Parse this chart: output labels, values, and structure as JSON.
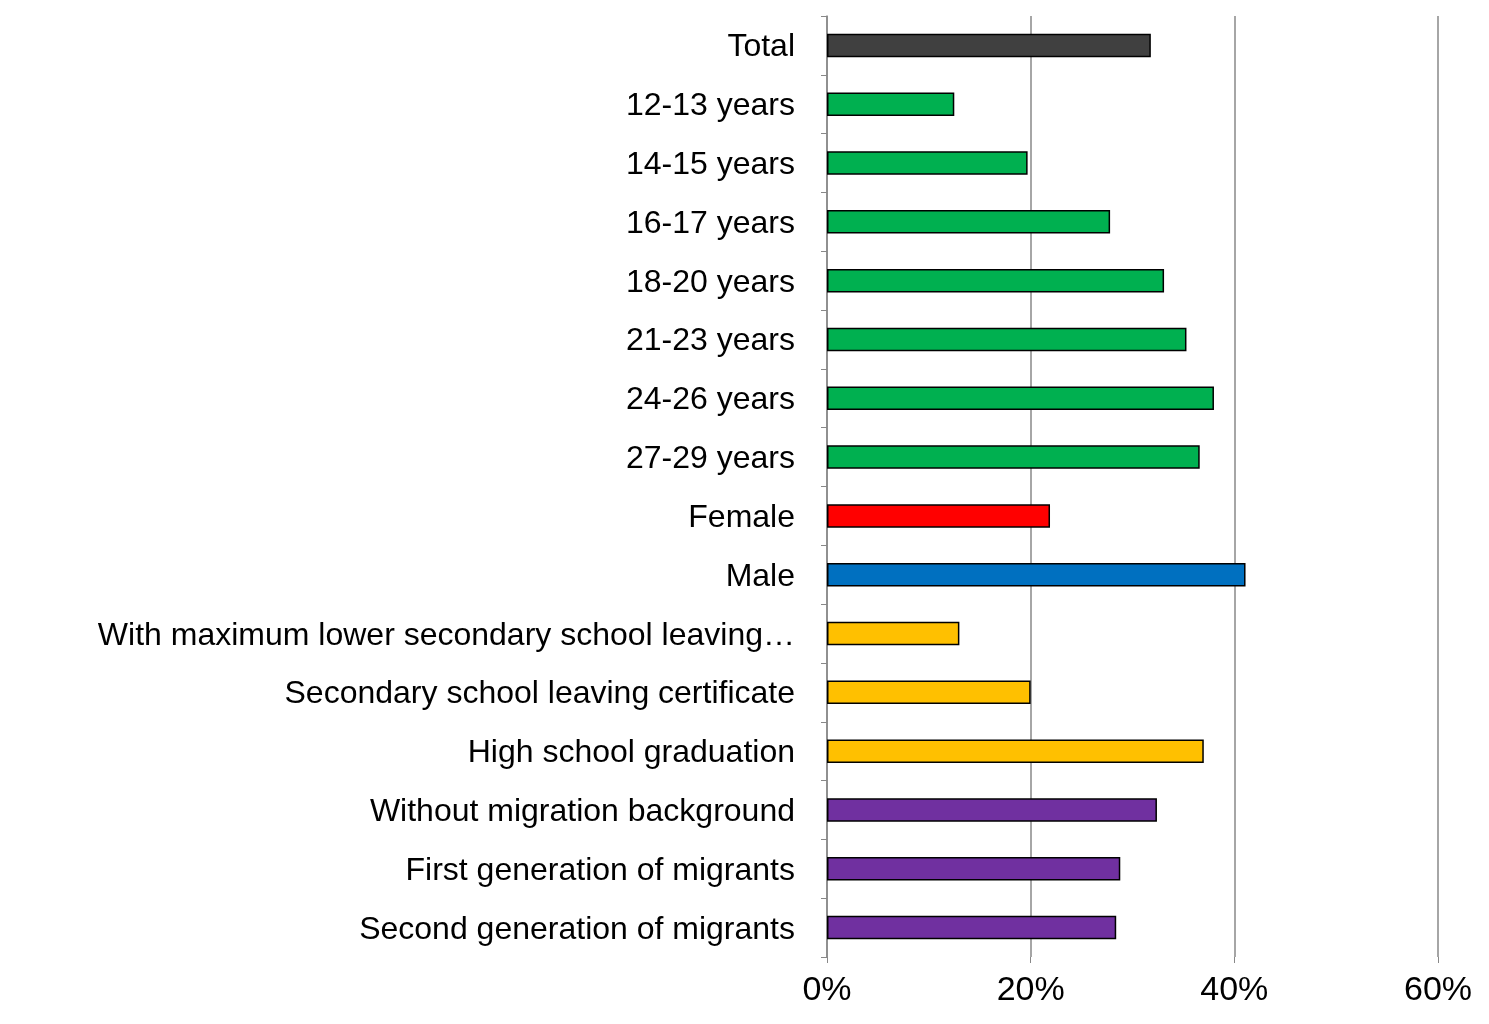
{
  "chart_data": {
    "type": "bar",
    "orientation": "horizontal",
    "categories": [
      "Total",
      "12-13 years",
      "14-15 years",
      "16-17 years",
      "18-20 years",
      "21-23 years",
      "24-26 years",
      "27-29 years",
      "Female",
      "Male",
      "With maximum lower secondary school leaving…",
      "Secondary school leaving certificate",
      "High school graduation",
      "Without migration background",
      "First generation of migrants",
      "Second generation of migrants"
    ],
    "values": [
      31.8,
      12.5,
      19.7,
      27.8,
      33.1,
      35.3,
      38.0,
      36.6,
      21.9,
      41.1,
      13.0,
      20.0,
      37.0,
      32.4,
      28.8,
      28.4
    ],
    "colors": [
      "#404040",
      "#00b050",
      "#00b050",
      "#00b050",
      "#00b050",
      "#00b050",
      "#00b050",
      "#00b050",
      "#ff0000",
      "#0070c0",
      "#ffc000",
      "#ffc000",
      "#ffc000",
      "#7030a0",
      "#7030a0",
      "#7030a0"
    ],
    "xlim": [
      0,
      60
    ],
    "xticks": [
      {
        "value": 0,
        "label": "0%"
      },
      {
        "value": 20,
        "label": "20%"
      },
      {
        "value": 40,
        "label": "40%"
      },
      {
        "value": 60,
        "label": "60%"
      }
    ],
    "grid": "x"
  }
}
